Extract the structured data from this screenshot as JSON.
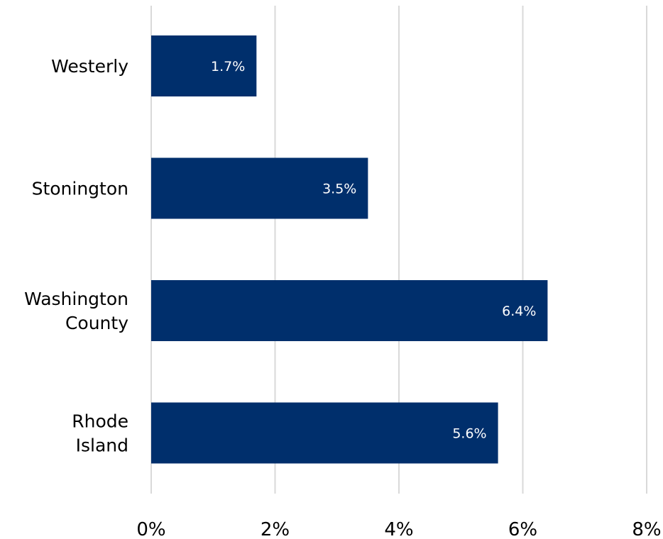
{
  "chart_data": {
    "type": "bar",
    "orientation": "horizontal",
    "categories": [
      "Westerly",
      "Stonington",
      "Washington County",
      "Rhode Island"
    ],
    "category_lines": [
      [
        "Westerly"
      ],
      [
        "Stonington"
      ],
      [
        "Washington",
        "County"
      ],
      [
        "Rhode",
        "Island"
      ]
    ],
    "values": [
      1.7,
      3.5,
      6.4,
      5.6
    ],
    "data_labels": [
      "1.7%",
      "3.5%",
      "6.4%",
      "5.6%"
    ],
    "xlim": [
      0,
      8
    ],
    "xticks": [
      0,
      2,
      4,
      6,
      8
    ],
    "xtick_labels": [
      "0%",
      "2%",
      "4%",
      "6%",
      "8%"
    ],
    "grid": true,
    "legend": "none",
    "colors": {
      "bar": "#002f6c",
      "grid": "#d9d9d9",
      "bar_label": "#ffffff"
    }
  }
}
